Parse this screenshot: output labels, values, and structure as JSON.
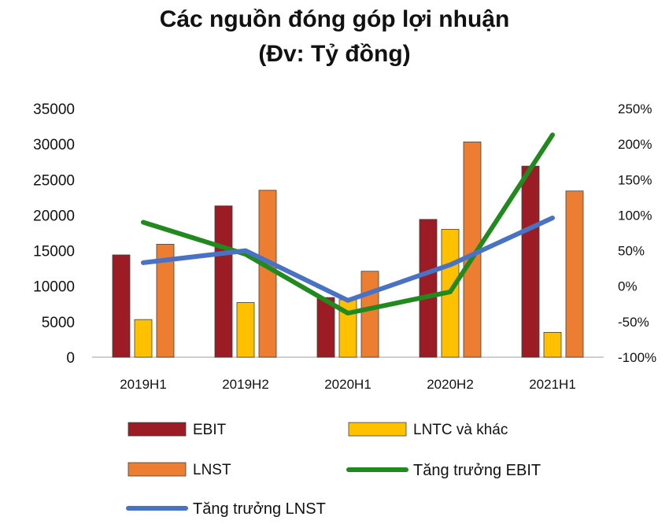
{
  "title": "Các nguồn đóng góp lợi nhuận",
  "subtitle": "(Đv: Tỷ đồng)",
  "colors": {
    "EBIT": "#9b1c24",
    "LNTC và khác": "#ffc000",
    "LNST": "#ed7d31",
    "Tăng trưởng EBIT": "#22891f",
    "Tăng trưởng LNST": "#4a72c4",
    "bar_outline": "#404040"
  },
  "chart_data": {
    "type": "bar",
    "categories": [
      "2019H1",
      "2019H2",
      "2020H1",
      "2020H2",
      "2021H1"
    ],
    "series": [
      {
        "name": "EBIT",
        "type": "bar",
        "axis": "left",
        "values": [
          14400,
          21300,
          8400,
          19400,
          26900
        ]
      },
      {
        "name": "LNTC và khác",
        "type": "bar",
        "axis": "left",
        "values": [
          5300,
          7700,
          8100,
          18000,
          3500
        ]
      },
      {
        "name": "LNST",
        "type": "bar",
        "axis": "left",
        "values": [
          15900,
          23500,
          12100,
          30300,
          23400
        ]
      },
      {
        "name": "Tăng trưởng EBIT",
        "type": "line",
        "axis": "right",
        "values": [
          0.9,
          0.45,
          -0.38,
          -0.08,
          2.13
        ]
      },
      {
        "name": "Tăng trưởng LNST",
        "type": "line",
        "axis": "right",
        "values": [
          0.33,
          0.5,
          -0.2,
          0.3,
          0.96
        ]
      }
    ],
    "ylim": [
      0,
      35000
    ],
    "yticks": [
      "0",
      "5000",
      "10000",
      "15000",
      "20000",
      "25000",
      "30000",
      "35000"
    ],
    "y2lim": [
      -1.0,
      2.5
    ],
    "y2ticks": [
      "-100%",
      "-50%",
      "0%",
      "50%",
      "100%",
      "150%",
      "200%",
      "250%"
    ],
    "legend_position": "bottom",
    "grid": false
  }
}
